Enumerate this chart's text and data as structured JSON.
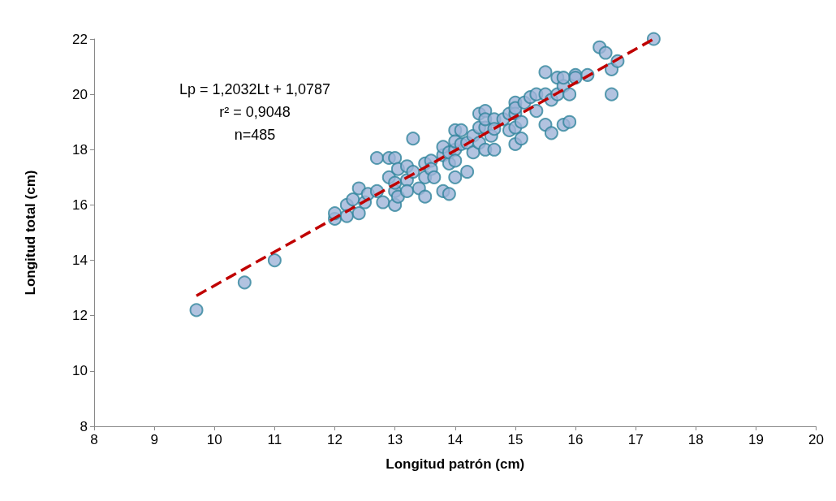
{
  "chart_data": {
    "type": "scatter",
    "xlabel": "Longitud patrón (cm)",
    "ylabel": "Longitud total (cm)",
    "xlim": [
      8,
      20
    ],
    "xticks": [
      8,
      9,
      10,
      11,
      12,
      13,
      14,
      15,
      16,
      17,
      18,
      19,
      20
    ],
    "ylim": [
      8,
      22
    ],
    "yticks": [
      8,
      10,
      12,
      14,
      16,
      18,
      20,
      22
    ],
    "grid": false,
    "annotations": [
      "Lp = 1,2032Lt + 1,0787",
      "r² = 0,9048",
      "n=485"
    ],
    "series": [
      {
        "color": "#9fb4d8",
        "marker": "circle",
        "x": [
          9.7,
          10.5,
          11.0,
          12.0,
          12.0,
          12.2,
          12.2,
          12.3,
          12.4,
          12.4,
          12.5,
          12.55,
          12.7,
          12.7,
          12.8,
          12.9,
          12.9,
          13.0,
          13.0,
          13.0,
          13.0,
          13.05,
          13.05,
          13.2,
          13.2,
          13.2,
          13.3,
          13.3,
          13.4,
          13.5,
          13.5,
          13.5,
          13.6,
          13.6,
          13.65,
          13.8,
          13.8,
          13.8,
          13.9,
          13.9,
          13.9,
          14.0,
          14.0,
          14.0,
          14.0,
          14.0,
          14.1,
          14.1,
          14.2,
          14.2,
          14.3,
          14.3,
          14.4,
          14.4,
          14.4,
          14.5,
          14.5,
          14.5,
          14.5,
          14.6,
          14.65,
          14.65,
          14.65,
          14.8,
          14.9,
          14.9,
          15.0,
          15.0,
          15.0,
          15.0,
          15.0,
          15.1,
          15.1,
          15.15,
          15.25,
          15.35,
          15.35,
          15.5,
          15.5,
          15.5,
          15.6,
          15.6,
          15.7,
          15.7,
          15.8,
          15.8,
          15.8,
          15.9,
          15.9,
          16.0,
          16.0,
          16.2,
          16.4,
          16.5,
          16.6,
          16.6,
          16.7,
          17.3
        ],
        "values": [
          12.2,
          13.2,
          14.0,
          15.5,
          15.7,
          16.0,
          15.6,
          16.2,
          15.7,
          16.6,
          16.1,
          16.4,
          17.7,
          16.5,
          16.1,
          17.0,
          17.7,
          17.7,
          16.0,
          16.5,
          16.8,
          17.3,
          16.3,
          17.4,
          16.9,
          16.5,
          18.4,
          17.2,
          16.6,
          17.5,
          16.3,
          17.0,
          17.6,
          17.3,
          17.0,
          17.8,
          16.5,
          18.1,
          16.4,
          17.5,
          17.9,
          18.7,
          18.0,
          17.0,
          17.6,
          18.3,
          18.7,
          18.2,
          17.2,
          18.25,
          18.5,
          17.9,
          19.3,
          18.8,
          18.25,
          19.4,
          18.0,
          18.8,
          19.1,
          18.5,
          19.1,
          18.0,
          18.75,
          19.1,
          19.3,
          18.7,
          19.7,
          18.2,
          18.8,
          19.3,
          19.5,
          19.0,
          18.4,
          19.7,
          19.9,
          19.4,
          20.0,
          20.8,
          18.9,
          20.0,
          19.8,
          18.6,
          20.6,
          20.0,
          20.3,
          18.9,
          20.6,
          20.0,
          19.0,
          20.7,
          20.6,
          20.7,
          21.7,
          21.5,
          20.9,
          20.0,
          21.2,
          22.0
        ]
      },
      {
        "type": "line",
        "color": "#c00000",
        "line_style": "dashed",
        "x": [
          9.7,
          17.3
        ],
        "values": [
          12.72,
          22.0
        ]
      }
    ]
  }
}
